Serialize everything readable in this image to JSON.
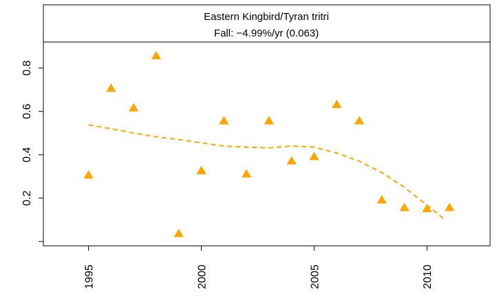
{
  "chart_data": {
    "type": "scatter",
    "title": "Eastern Kingbird/Tyran tritri",
    "subtitle": "Fall: −4.99%/yr (0.063)",
    "xlabel": "",
    "ylabel": "",
    "xlim": [
      1993.0,
      2012.8
    ],
    "ylim": [
      -0.02,
      0.92
    ],
    "x_ticks": [
      1995,
      2000,
      2005,
      2010
    ],
    "x_tick_labels": [
      "1995",
      "2000",
      "2005",
      "2010"
    ],
    "y_ticks": [
      0.2,
      0.4,
      0.6,
      0.8
    ],
    "y_tick_labels": [
      "0.2",
      "0.4",
      "0.6",
      "0.8"
    ],
    "y_extra_ticks": [
      0.0
    ],
    "grid": false,
    "legend": "none",
    "marker": "triangle",
    "point_color": "#FFA500",
    "trend_color": "#FFA500",
    "points": [
      {
        "x": 1995,
        "y": 0.305
      },
      {
        "x": 1996,
        "y": 0.705
      },
      {
        "x": 1997,
        "y": 0.615
      },
      {
        "x": 1998,
        "y": 0.855
      },
      {
        "x": 1999,
        "y": 0.035
      },
      {
        "x": 2000,
        "y": 0.325
      },
      {
        "x": 2001,
        "y": 0.555
      },
      {
        "x": 2002,
        "y": 0.31
      },
      {
        "x": 2003,
        "y": 0.555
      },
      {
        "x": 2004,
        "y": 0.37
      },
      {
        "x": 2005,
        "y": 0.39
      },
      {
        "x": 2006,
        "y": 0.63
      },
      {
        "x": 2007,
        "y": 0.555
      },
      {
        "x": 2008,
        "y": 0.19
      },
      {
        "x": 2009,
        "y": 0.155
      },
      {
        "x": 2010,
        "y": 0.15
      },
      {
        "x": 2011,
        "y": 0.155
      }
    ],
    "trend": [
      {
        "x": 1995,
        "y": 0.538
      },
      {
        "x": 1996,
        "y": 0.52
      },
      {
        "x": 1997,
        "y": 0.5
      },
      {
        "x": 1998,
        "y": 0.483
      },
      {
        "x": 1999,
        "y": 0.47
      },
      {
        "x": 2000,
        "y": 0.455
      },
      {
        "x": 2001,
        "y": 0.44
      },
      {
        "x": 2002,
        "y": 0.435
      },
      {
        "x": 2003,
        "y": 0.432
      },
      {
        "x": 2004,
        "y": 0.44
      },
      {
        "x": 2005,
        "y": 0.435
      },
      {
        "x": 2006,
        "y": 0.408
      },
      {
        "x": 2007,
        "y": 0.37
      },
      {
        "x": 2008,
        "y": 0.318
      },
      {
        "x": 2009,
        "y": 0.25
      },
      {
        "x": 2010,
        "y": 0.168
      },
      {
        "x": 2010.8,
        "y": 0.1
      }
    ]
  }
}
